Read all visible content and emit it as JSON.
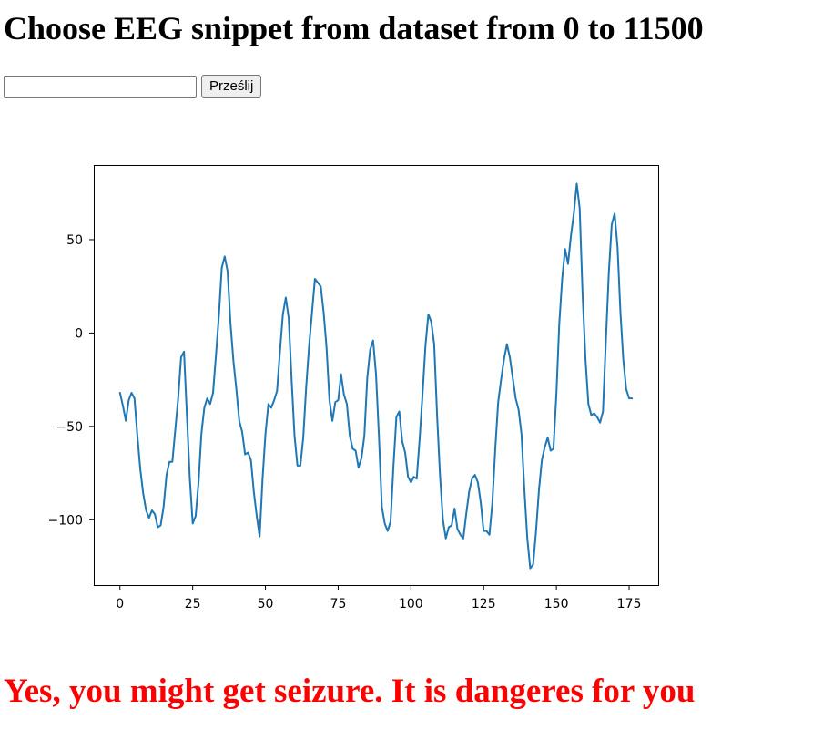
{
  "header": {
    "title": "Choose EEG snippet from dataset from 0 to 11500"
  },
  "form": {
    "input_value": "",
    "submit_label": "Prześlij"
  },
  "chart_data": {
    "type": "line",
    "title": "",
    "xlabel": "",
    "ylabel": "",
    "xlim": [
      -9,
      185
    ],
    "ylim": [
      -135,
      90
    ],
    "x_ticks": [
      0,
      25,
      50,
      75,
      100,
      125,
      150,
      175
    ],
    "x_tick_labels": [
      "0",
      "25",
      "50",
      "75",
      "100",
      "125",
      "150",
      "175"
    ],
    "y_ticks": [
      50,
      0,
      -50,
      -100
    ],
    "y_tick_labels": [
      "50",
      "0",
      "−50",
      "−100"
    ],
    "grid": false,
    "legend": "none",
    "line_color": "#1f77b4",
    "series": [
      {
        "x_start": 0,
        "x_step": 1,
        "values": [
          -32,
          -39,
          -47,
          -36,
          -32,
          -35,
          -55,
          -73,
          -86,
          -95,
          -99,
          -95,
          -97,
          -104,
          -103,
          -93,
          -76,
          -69,
          -69,
          -52,
          -35,
          -13,
          -10,
          -44,
          -78,
          -102,
          -98,
          -80,
          -54,
          -40,
          -35,
          -38,
          -32,
          -12,
          9,
          35,
          41,
          33,
          5,
          -15,
          -30,
          -47,
          -53,
          -65,
          -64,
          -68,
          -85,
          -98,
          -109,
          -78,
          -54,
          -38,
          -40,
          -36,
          -31,
          -10,
          10,
          19,
          8,
          -25,
          -55,
          -71,
          -71,
          -56,
          -29,
          -7,
          11,
          29,
          27,
          25,
          11,
          -8,
          -36,
          -47,
          -37,
          -36,
          -22,
          -33,
          -38,
          -55,
          -62,
          -63,
          -72,
          -67,
          -55,
          -24,
          -9,
          -4,
          -22,
          -55,
          -93,
          -102,
          -106,
          -101,
          -71,
          -45,
          -42,
          -58,
          -64,
          -77,
          -80,
          -77,
          -78,
          -57,
          -33,
          -7,
          10,
          6,
          -6,
          -44,
          -76,
          -100,
          -110,
          -104,
          -103,
          -94,
          -105,
          -108,
          -110,
          -97,
          -85,
          -78,
          -76,
          -80,
          -91,
          -106,
          -106,
          -108,
          -91,
          -62,
          -37,
          -25,
          -14,
          -6,
          -13,
          -24,
          -35,
          -41,
          -54,
          -84,
          -110,
          -126,
          -124,
          -106,
          -84,
          -68,
          -61,
          -56,
          -63,
          -62,
          -33,
          5,
          29,
          45,
          37,
          52,
          64,
          80,
          67,
          21,
          -14,
          -38,
          -44,
          -43,
          -45,
          -48,
          -42,
          -4,
          32,
          58,
          64,
          46,
          11,
          -14,
          -30,
          -35,
          -35
        ]
      }
    ]
  },
  "result": {
    "message": "Yes, you might get seizure. It is dangeres for you",
    "color": "#ff0000"
  }
}
